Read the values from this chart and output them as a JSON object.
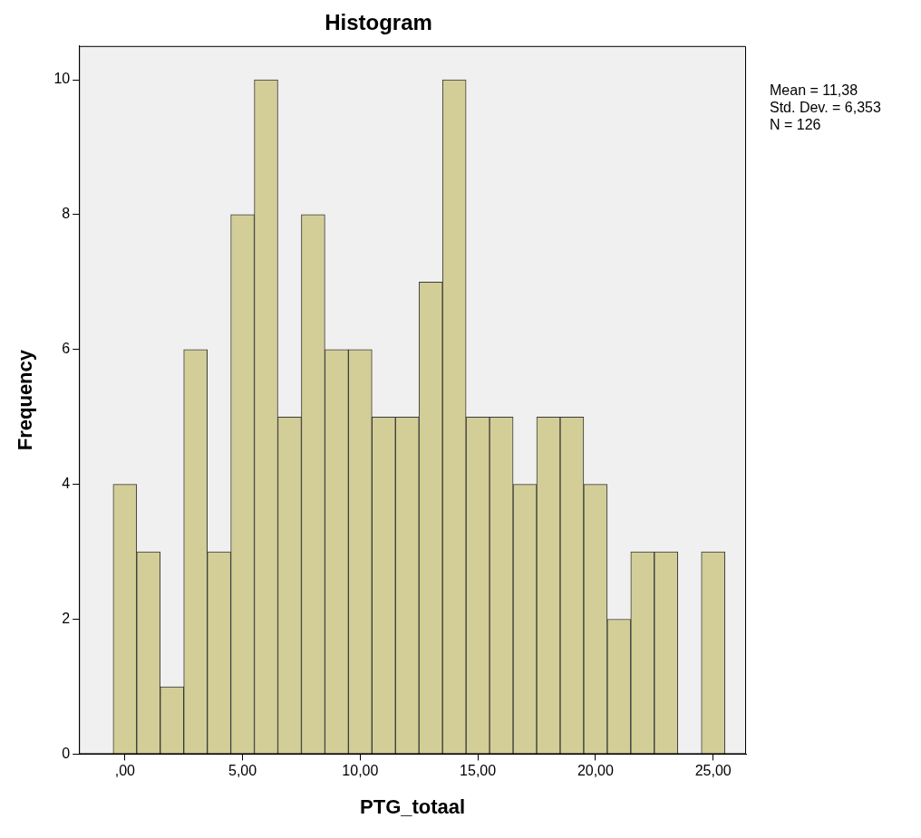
{
  "chart_data": {
    "type": "histogram",
    "title": "Histogram",
    "xlabel": "PTG_totaal",
    "ylabel": "Frequency",
    "bins": [
      -0.5,
      0.5,
      1.5,
      2.5,
      3.5,
      4.5,
      5.5,
      6.5,
      7.5,
      8.5,
      9.5,
      10.5,
      11.5,
      12.5,
      13.5,
      14.5,
      15.5,
      16.5,
      17.5,
      18.5,
      19.5,
      20.5,
      21.5,
      22.5,
      23.5,
      24.5,
      25.5
    ],
    "values": [
      4,
      3,
      1,
      6,
      3,
      8,
      10,
      5,
      8,
      6,
      6,
      5,
      5,
      7,
      10,
      5,
      5,
      4,
      5,
      5,
      4,
      2,
      3,
      3,
      0,
      3
    ],
    "color": "#d3ce97",
    "xlim": [
      -1.95,
      26.4
    ],
    "xticks": [
      {
        "value": 0,
        "label": ",00"
      },
      {
        "value": 5,
        "label": "5,00"
      },
      {
        "value": 10,
        "label": "10,00"
      },
      {
        "value": 15,
        "label": "15,00"
      },
      {
        "value": 20,
        "label": "20,00"
      },
      {
        "value": 25,
        "label": "25,00"
      }
    ],
    "ylim": [
      0,
      10.5
    ],
    "yticks": [
      0,
      2,
      4,
      6,
      8,
      10
    ],
    "annotations": [
      "Mean = 11,38",
      "Std. Dev. = 6,353",
      "N = 126"
    ]
  }
}
